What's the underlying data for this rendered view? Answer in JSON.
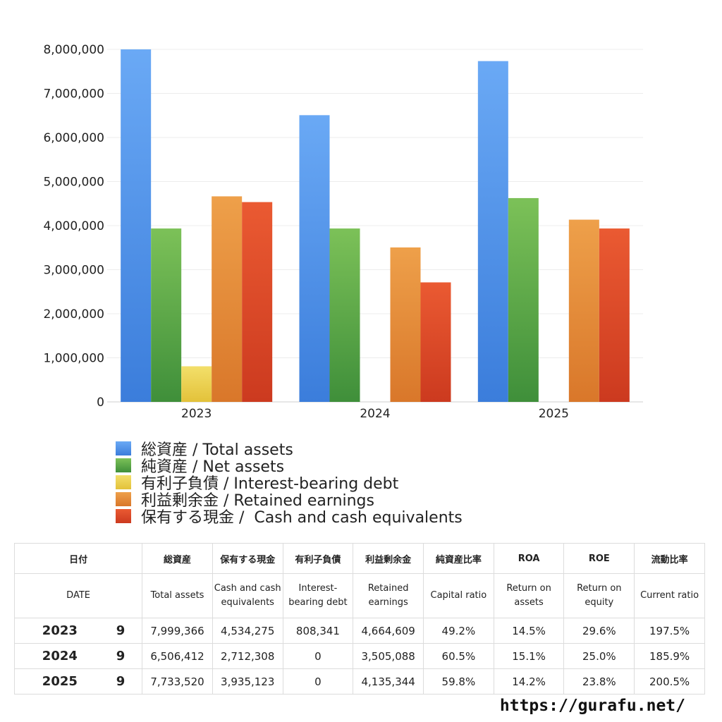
{
  "chart_data": {
    "type": "bar",
    "categories": [
      "2023",
      "2024",
      "2025"
    ],
    "ylim": [
      0,
      8000000
    ],
    "yticks": [
      "0",
      "1,000,000",
      "2,000,000",
      "3,000,000",
      "4,000,000",
      "5,000,000",
      "6,000,000",
      "7,000,000",
      "8,000,000"
    ],
    "grid": true,
    "legend_position": "bottom",
    "series": [
      {
        "name": "総資産 / Total assets",
        "values": [
          7999366,
          6506412,
          7733520
        ],
        "color": "#3b7ddb",
        "color_top": "#6aa9f5"
      },
      {
        "name": "純資産 / Net assets",
        "values": [
          3935000,
          3935000,
          4625000
        ],
        "color": "#3f8f3a",
        "color_top": "#7cc158"
      },
      {
        "name": "有利子負債 / Interest-bearing debt",
        "values": [
          808341,
          0,
          0
        ],
        "color": "#e3c23a",
        "color_top": "#f3df6a"
      },
      {
        "name": "利益剰余金 / Retained earnings",
        "values": [
          4664609,
          3505088,
          4135344
        ],
        "color": "#d9772a",
        "color_top": "#eea04a"
      },
      {
        "name": "保有する現金 /  Cash and cash equivalents",
        "values": [
          4534275,
          2712308,
          3935123
        ],
        "color": "#cc3a1f",
        "color_top": "#ea5a32"
      }
    ]
  },
  "table": {
    "header_jp": [
      "日付",
      "総資産",
      "保有する現金",
      "有利子負債",
      "利益剰余金",
      "純資産比率",
      "ROA",
      "ROE",
      "流動比率"
    ],
    "header_en": [
      "DATE",
      "Total assets",
      "Cash and cash equivalents",
      "Interest-bearing debt",
      "Retained earnings",
      "Capital ratio",
      "Return on assets",
      "Return on equity",
      "Current ratio"
    ],
    "rows": [
      {
        "year": "2023",
        "month": "9",
        "cells": [
          "7,999,366",
          "4,534,275",
          "808,341",
          "4,664,609",
          "49.2%",
          "14.5%",
          "29.6%",
          "197.5%"
        ]
      },
      {
        "year": "2024",
        "month": "9",
        "cells": [
          "6,506,412",
          "2,712,308",
          "0",
          "3,505,088",
          "60.5%",
          "15.1%",
          "25.0%",
          "185.9%"
        ]
      },
      {
        "year": "2025",
        "month": "9",
        "cells": [
          "7,733,520",
          "3,935,123",
          "0",
          "4,135,344",
          "59.8%",
          "14.2%",
          "23.8%",
          "200.5%"
        ]
      }
    ]
  },
  "footer": {
    "url": "https://gurafu.net/"
  }
}
